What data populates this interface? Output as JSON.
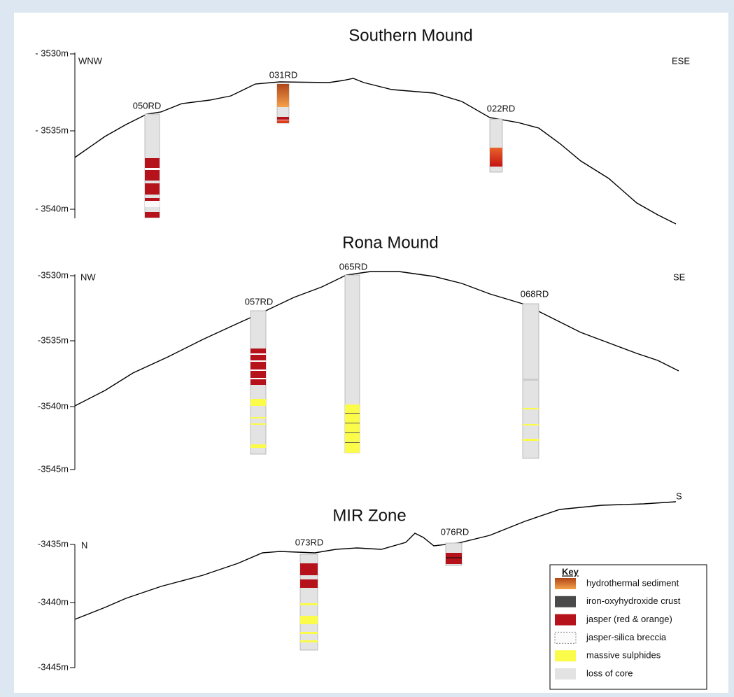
{
  "sections": [
    {
      "title": "Southern Mound",
      "depth_labels": [
        "- 3530m",
        "- 3535m",
        "- 3540m"
      ],
      "left_dir": "WNW",
      "right_dir": "ESE",
      "cores": [
        "050RD",
        "031RD",
        "022RD"
      ]
    },
    {
      "title": "Rona Mound",
      "depth_labels": [
        "-3530m",
        "-3535m",
        "-3540m",
        "-3545m"
      ],
      "left_dir": "NW",
      "right_dir": "SE",
      "cores": [
        "057RD",
        "065RD",
        "068RD"
      ]
    },
    {
      "title": "MIR Zone",
      "depth_labels": [
        "-3435m",
        "-3440m",
        "-3445m"
      ],
      "left_dir": "N",
      "right_dir": "S",
      "cores": [
        "073RD",
        "076RD"
      ]
    }
  ],
  "key": {
    "title": "Key",
    "items": [
      "hydrothermal sediment",
      "iron-oxyhydroxide crust",
      "jasper (red & orange)",
      "jasper-silica breccia",
      "massive sulphides",
      "loss of core"
    ]
  }
}
